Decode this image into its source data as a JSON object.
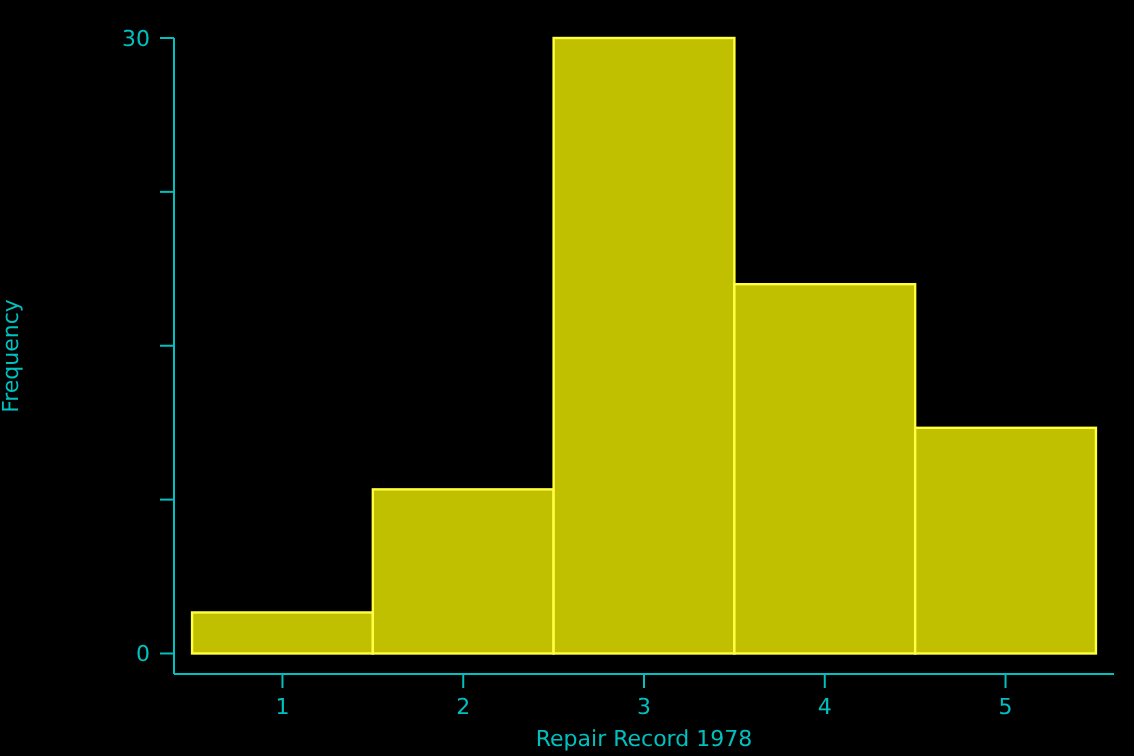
{
  "chart_data": {
    "type": "histogram",
    "xlabel": "Repair Record 1978",
    "ylabel": "Frequency",
    "bins": [
      0.5,
      1.5,
      2.5,
      3.5,
      4.5,
      5.5
    ],
    "values": [
      2,
      8,
      30,
      18,
      11
    ],
    "color": "#c0c000",
    "xlim": [
      0.4,
      5.6
    ],
    "xticks": [
      1,
      2,
      3,
      4,
      5
    ],
    "ylim": [
      -1,
      30
    ],
    "yticks": [
      0,
      {
        "value": 7.5,
        "label": null
      },
      {
        "value": 15,
        "label": null
      },
      {
        "value": 22.5,
        "label": null
      },
      30
    ],
    "grid": false
  }
}
